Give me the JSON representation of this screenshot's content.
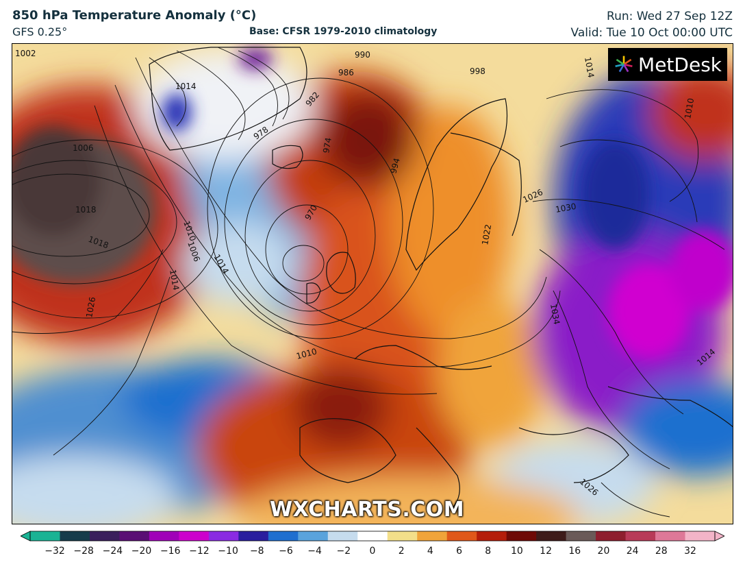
{
  "header": {
    "title": "850 hPa Temperature Anomaly (°C)",
    "model": "GFS 0.25°",
    "base": "Base: CFSR 1979-2010 climatology",
    "run": "Run: Wed 27 Sep 12Z",
    "valid": "Valid: Tue 10 Oct 00:00 UTC"
  },
  "logo": {
    "text": "MetDesk",
    "icon": "metdesk-star-icon"
  },
  "watermark": "WXCHARTS.COM",
  "map": {
    "region": "North Atlantic and Europe",
    "field": "850 hPa temperature anomaly",
    "contour_field": "mean sea level pressure isobars",
    "isobar_labels": [
      "1002",
      "1018",
      "1006",
      "1014",
      "1026",
      "990",
      "998",
      "986",
      "982",
      "978",
      "974",
      "970",
      "994",
      "1022",
      "1018",
      "1010",
      "1026",
      "1030",
      "1014",
      "1010",
      "1006",
      "1014",
      "1022",
      "1026",
      "1014",
      "1018",
      "1022",
      "1026",
      "1010",
      "1006",
      "1002",
      "1014",
      "1034",
      "1026",
      "1010",
      "1014",
      "1006"
    ]
  },
  "colorbar": {
    "ticks": [
      "−32",
      "−28",
      "−24",
      "−20",
      "−16",
      "−12",
      "−10",
      "−8",
      "−6",
      "−4",
      "−2",
      "0",
      "2",
      "4",
      "6",
      "8",
      "10",
      "12",
      "16",
      "20",
      "24",
      "28",
      "32"
    ],
    "colors": [
      "#1ab394",
      "#163c4b",
      "#3a1f5c",
      "#5a0f74",
      "#a000b8",
      "#cc00cc",
      "#8a2be2",
      "#2a1e9e",
      "#1f6fcf",
      "#5aa3dc",
      "#c6dcee",
      "#ffffff",
      "#f3df8a",
      "#f0a43a",
      "#e0581a",
      "#b41d0a",
      "#6e0a06",
      "#3e1c1a",
      "#6a5a58",
      "#8e1e2e",
      "#b83a58",
      "#de7898",
      "#f3b4c8"
    ]
  }
}
